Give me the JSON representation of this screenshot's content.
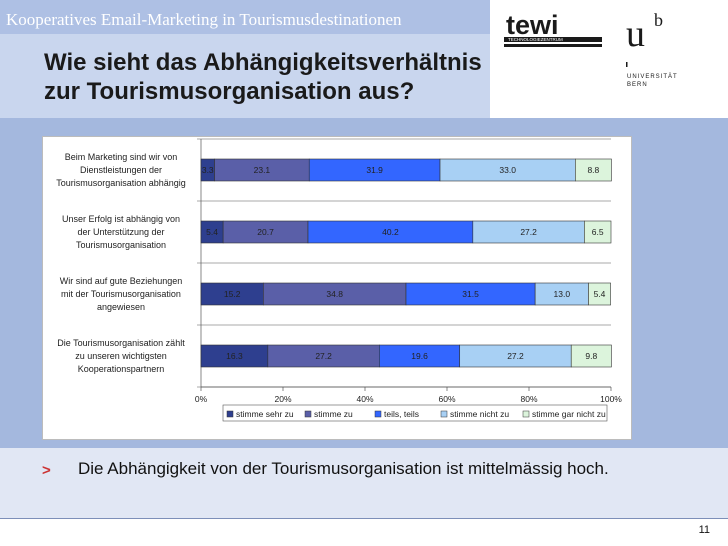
{
  "header": {
    "banner": "Kooperatives Email-Marketing in Tourismusdestinationen",
    "title_line1": "Wie sieht das Abhängigkeitsverhältnis",
    "title_line2": "zur Tourismusorganisation aus?"
  },
  "logos": {
    "tewi_text": "tewi",
    "tewi_subtext": "TECHNOLOGIEZENTRUM",
    "unibe_mark": "u",
    "unibe_superscript": "b",
    "unibe_line1": "UNIVERSITÄT",
    "unibe_line2": "BERN"
  },
  "chart_data": {
    "type": "bar",
    "orientation": "horizontal",
    "stacked": "percent",
    "categories": [
      [
        "Beim Marketing sind wir von",
        "Dienstleistungen der",
        "Tourismusorganisation abhängig"
      ],
      [
        "Unser Erfolg ist abhängig von",
        "der Unterstützung der",
        "Tourismusorganisation"
      ],
      [
        "Wir sind auf gute Beziehungen",
        "mit der Tourismusorganisation",
        "angewiesen"
      ],
      [
        "Die Tourismusorganisation zählt",
        "zu unseren wichtigsten",
        "Kooperationspartnern"
      ]
    ],
    "series": [
      {
        "name": "stimme sehr zu",
        "color": "#2e3f8f",
        "values": [
          3.3,
          5.4,
          15.2,
          16.3
        ]
      },
      {
        "name": "stimme zu",
        "color": "#5a5fa8",
        "values": [
          23.1,
          20.7,
          34.8,
          27.2
        ]
      },
      {
        "name": "teils, teils",
        "color": "#3366ff",
        "values": [
          31.9,
          40.2,
          31.5,
          19.6
        ]
      },
      {
        "name": "stimme nicht zu",
        "color": "#a8d0f4",
        "values": [
          33.0,
          27.2,
          13.0,
          27.2
        ]
      },
      {
        "name": "stimme gar nicht zu",
        "color": "#dcf4dc",
        "values": [
          8.8,
          6.5,
          5.4,
          9.8
        ]
      }
    ],
    "value_labels": [
      [
        "3.3",
        "23.1",
        "31.9",
        "33.0",
        "8.8"
      ],
      [
        "5.4",
        "20.7",
        "40.2",
        "27.2",
        "6.5"
      ],
      [
        "15.2",
        "34.8",
        "31.5",
        "13.0",
        "5.4"
      ],
      [
        "16.3",
        "27.2",
        "19.6",
        "27.2",
        "9.8"
      ]
    ],
    "xlim": [
      0,
      100
    ],
    "xticks": [
      "0%",
      "20%",
      "40%",
      "60%",
      "80%",
      "100%"
    ],
    "grid": "horizontal",
    "legend": "bottom"
  },
  "bullet": {
    "marker": ">",
    "text": "Die Abhängigkeit von der Tourismusorganisation ist mittelmässig hoch."
  },
  "footer": {
    "page_number": "11"
  }
}
